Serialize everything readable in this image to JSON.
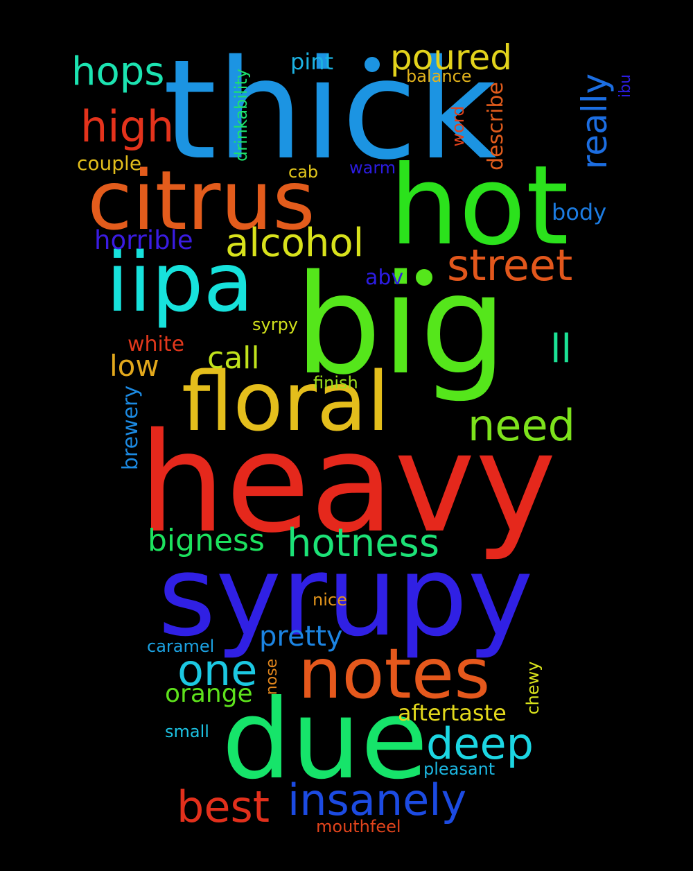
{
  "words": {
    "heavy": {
      "text": "heavy",
      "color": "#e5281c"
    },
    "big": {
      "text": "big",
      "color": "#55e61b"
    },
    "thick": {
      "text": "thick",
      "color": "#1c94e2"
    },
    "syrupy": {
      "text": "syrupy",
      "color": "#3020e4"
    },
    "due": {
      "text": "due",
      "color": "#16e46a"
    },
    "hot": {
      "text": "hot",
      "color": "#2be21c"
    },
    "citrus": {
      "text": "citrus",
      "color": "#e35c1c"
    },
    "iipa": {
      "text": "iipa",
      "color": "#17e2dc"
    },
    "floral": {
      "text": "floral",
      "color": "#e4be1c"
    },
    "notes": {
      "text": "notes",
      "color": "#e5581c"
    },
    "street": {
      "text": "street",
      "color": "#e2571c"
    },
    "alcohol": {
      "text": "alcohol",
      "color": "#d8e21c"
    },
    "high": {
      "text": "high",
      "color": "#e4331c"
    },
    "hops": {
      "text": "hops",
      "color": "#1ce3b1"
    },
    "poured": {
      "text": "poured",
      "color": "#e2d31c"
    },
    "really": {
      "text": "really",
      "color": "#1c6ee2"
    },
    "hotness": {
      "text": "hotness",
      "color": "#1ce277"
    },
    "bigness": {
      "text": "bigness",
      "color": "#1ce25e"
    },
    "need": {
      "text": "need",
      "color": "#7de21c"
    },
    "one": {
      "text": "one",
      "color": "#1cc8e2"
    },
    "deep": {
      "text": "deep",
      "color": "#1cd6e2"
    },
    "insanely": {
      "text": "insanely",
      "color": "#1c4be2"
    },
    "best": {
      "text": "best",
      "color": "#e2301c"
    },
    "pretty": {
      "text": "pretty",
      "color": "#1c84e2"
    },
    "call": {
      "text": "call",
      "color": "#c0e21c"
    },
    "low": {
      "text": "low",
      "color": "#e2a81c"
    },
    "ll": {
      "text": "ll",
      "color": "#1ce296"
    },
    "horrible": {
      "text": "horrible",
      "color": "#3a1ce2"
    },
    "orange": {
      "text": "orange",
      "color": "#5ee21c"
    },
    "aftertaste": {
      "text": "aftertaste",
      "color": "#e2d81c"
    },
    "pint": {
      "text": "pint",
      "color": "#1cb2e2"
    },
    "couple": {
      "text": "couple",
      "color": "#e2be1c"
    },
    "balance": {
      "text": "balance",
      "color": "#e2b21c"
    },
    "body": {
      "text": "body",
      "color": "#1c7ce2"
    },
    "abv": {
      "text": "abv",
      "color": "#2c1ce2"
    },
    "white": {
      "text": "white",
      "color": "#e2381c"
    },
    "finish": {
      "text": "finish",
      "color": "#9ee21c"
    },
    "syrpy": {
      "text": "syrpy",
      "color": "#d2e21c"
    },
    "cab": {
      "text": "cab",
      "color": "#e2c61c"
    },
    "warm": {
      "text": "warm",
      "color": "#2c1ce2"
    },
    "nice": {
      "text": "nice",
      "color": "#e2941c"
    },
    "caramel": {
      "text": "caramel",
      "color": "#1ca2e2"
    },
    "small": {
      "text": "small",
      "color": "#1cc2e2"
    },
    "pleasant": {
      "text": "pleasant",
      "color": "#1cb8e2"
    },
    "mouthfeel": {
      "text": "mouthfeel",
      "color": "#e2441c"
    },
    "drinkability": {
      "text": "drinkability",
      "color": "#1ce26e"
    },
    "describe": {
      "text": "describe",
      "color": "#e25c1c"
    },
    "word": {
      "text": "word",
      "color": "#e2421c"
    },
    "ibu": {
      "text": "ibu",
      "color": "#2c1ce2"
    },
    "brewery": {
      "text": "brewery",
      "color": "#1c8ae2"
    },
    "nose": {
      "text": "nose",
      "color": "#e2861c"
    },
    "chewy": {
      "text": "chewy",
      "color": "#d8e21c"
    }
  }
}
